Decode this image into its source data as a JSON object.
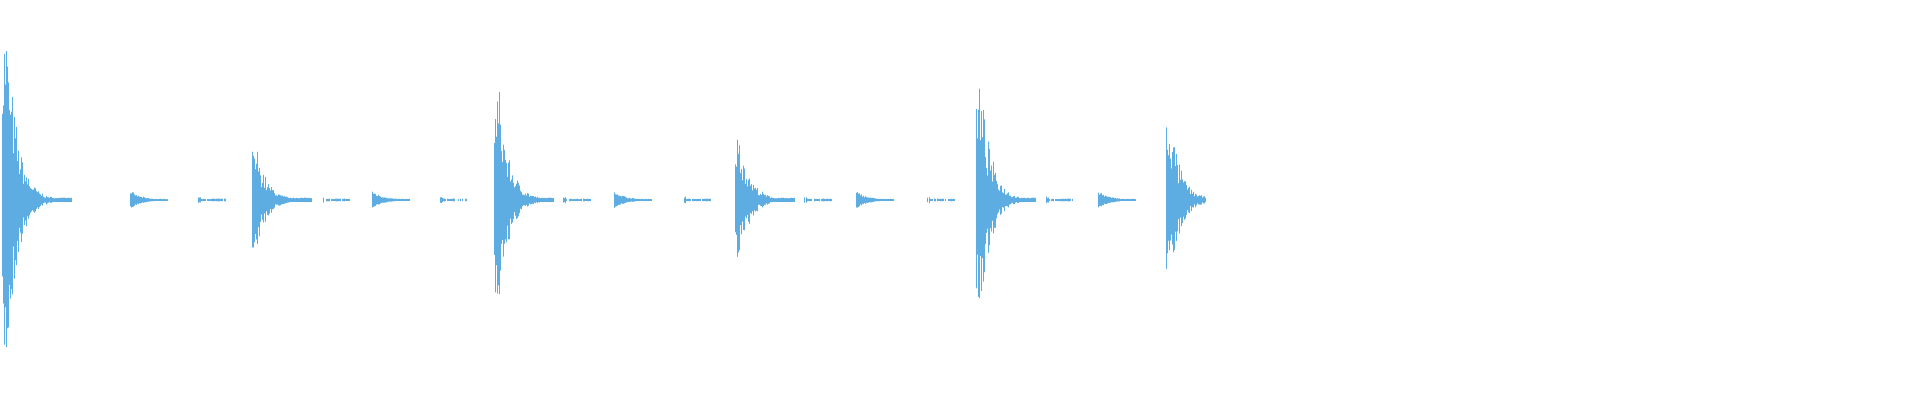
{
  "chart_data": {
    "type": "area",
    "description_of_marks": "",
    "color": "#5DADE2",
    "background": "#FFFFFF",
    "grid": false,
    "legend": "none",
    "ylim": [
      -1,
      1
    ],
    "events": [
      {
        "kind": "hit",
        "peak": 1.0
      },
      {
        "kind": "small",
        "peak": 0.05
      },
      {
        "kind": "tiny",
        "peak": 0.02
      },
      {
        "kind": "hit",
        "peak": 0.3
      },
      {
        "kind": "tiny",
        "peak": 0.02
      },
      {
        "kind": "small",
        "peak": 0.05
      },
      {
        "kind": "tiny",
        "peak": 0.02
      },
      {
        "kind": "hit",
        "peak": 0.63
      },
      {
        "kind": "tiny",
        "peak": 0.02
      },
      {
        "kind": "small",
        "peak": 0.05
      },
      {
        "kind": "tiny",
        "peak": 0.02
      },
      {
        "kind": "hit",
        "peak": 0.36
      },
      {
        "kind": "tiny",
        "peak": 0.02
      },
      {
        "kind": "small",
        "peak": 0.05
      },
      {
        "kind": "tiny",
        "peak": 0.02
      },
      {
        "kind": "hit",
        "peak": 0.65
      },
      {
        "kind": "tiny",
        "peak": 0.02
      },
      {
        "kind": "small",
        "peak": 0.05
      },
      {
        "kind": "hit",
        "peak": 0.45
      }
    ]
  }
}
